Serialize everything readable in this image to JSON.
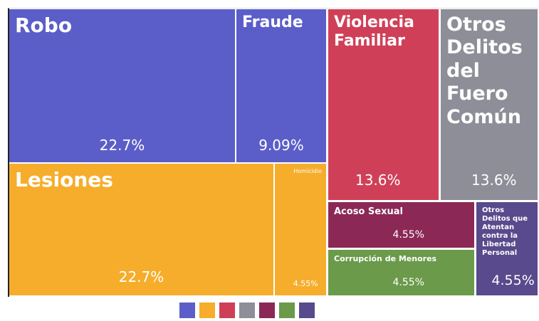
{
  "chart_data": {
    "type": "treemap",
    "categories": [
      "Robo",
      "Fraude",
      "Lesiones",
      "Homicidio",
      "Violencia Familiar",
      "Otros Delitos del Fuero Común",
      "Acoso Sexual",
      "Corrupción de Menores",
      "Otros Delitos que Atentan contra la Libertad Personal"
    ],
    "values": [
      22.7,
      9.09,
      22.7,
      4.55,
      13.6,
      13.6,
      4.55,
      4.55,
      4.55
    ],
    "value_labels": [
      "22.7%",
      "9.09%",
      "22.7%",
      "4.55%",
      "13.6%",
      "13.6%",
      "4.55%",
      "4.55%",
      "4.55%"
    ],
    "colors": [
      "#5b5ec9",
      "#5b5ec9",
      "#f5ad2b",
      "#f5ad2b",
      "#cf4058",
      "#8e8e98",
      "#8c2856",
      "#6a9a4a",
      "#584a8c"
    ]
  }
}
